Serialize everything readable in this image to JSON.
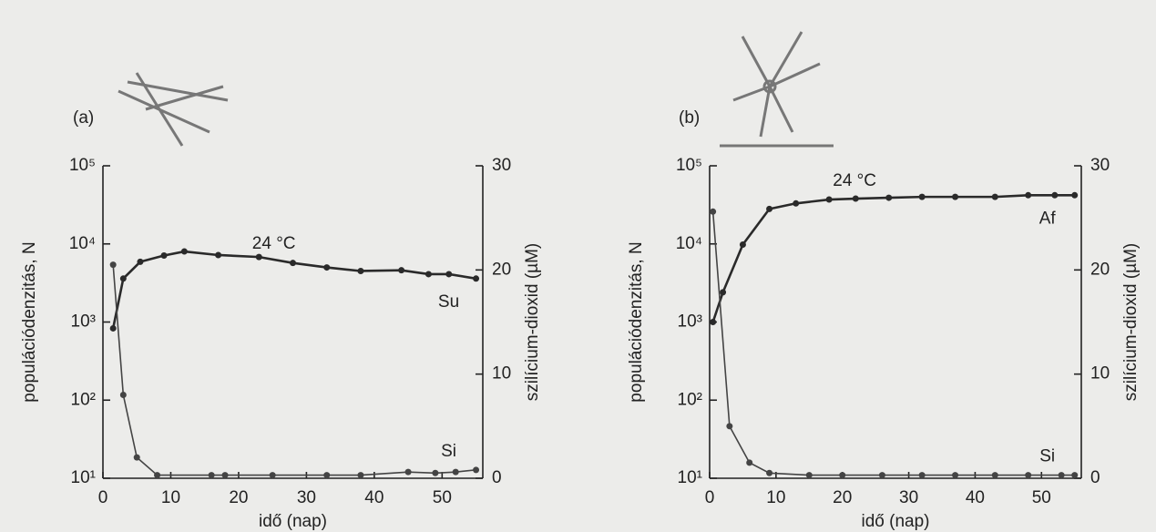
{
  "chart_data": [
    {
      "type": "line",
      "panel_label": "(a)",
      "annotation": "24 °C",
      "xlabel": "idő (nap)",
      "ylabel": "populációdenzitás, N",
      "y2label": "szilícium-dioxid (µM)",
      "ylog": true,
      "xlim": [
        0,
        56
      ],
      "xticks": [
        0,
        10,
        20,
        30,
        40,
        50
      ],
      "ylim": [
        10,
        100000
      ],
      "yticks": [
        {
          "value": 10,
          "label": "10¹"
        },
        {
          "value": 100,
          "label": "10²"
        },
        {
          "value": 1000,
          "label": "10³"
        },
        {
          "value": 10000,
          "label": "10⁴"
        },
        {
          "value": 100000,
          "label": "10⁵"
        }
      ],
      "y2lim": [
        0,
        30
      ],
      "y2ticks": [
        0,
        10,
        20,
        30
      ],
      "series": [
        {
          "name": "Su",
          "color": "#2a2a2a",
          "axis": "y",
          "x": [
            1.5,
            3,
            5.5,
            9,
            12,
            17,
            23,
            28,
            33,
            38,
            44,
            48,
            51,
            55
          ],
          "values": [
            830,
            3600,
            5900,
            7100,
            8000,
            7200,
            6800,
            5700,
            5000,
            4500,
            4600,
            4100,
            4100,
            3600
          ]
        },
        {
          "name": "Si",
          "color": "#444444",
          "axis": "y2",
          "x": [
            1.5,
            3,
            5,
            8,
            16,
            18,
            25,
            33,
            38,
            45,
            49,
            52,
            55
          ],
          "values": [
            20.5,
            8,
            2,
            0.3,
            0.3,
            0.3,
            0.3,
            0.3,
            0.3,
            0.6,
            0.5,
            0.6,
            0.8
          ]
        }
      ]
    },
    {
      "type": "line",
      "panel_label": "(b)",
      "annotation": "24 °C",
      "xlabel": "idő (nap)",
      "ylabel": "populációdenzitás, N",
      "y2label": "szilícium-dioxid (µM)",
      "ylog": true,
      "xlim": [
        0,
        56
      ],
      "xticks": [
        0,
        10,
        20,
        30,
        40,
        50
      ],
      "ylim": [
        10,
        100000
      ],
      "yticks": [
        {
          "value": 10,
          "label": "10¹"
        },
        {
          "value": 100,
          "label": "10²"
        },
        {
          "value": 1000,
          "label": "10³"
        },
        {
          "value": 10000,
          "label": "10⁴"
        },
        {
          "value": 100000,
          "label": "10⁵"
        }
      ],
      "y2lim": [
        0,
        30
      ],
      "y2ticks": [
        0,
        10,
        20,
        30
      ],
      "series": [
        {
          "name": "Af",
          "color": "#2a2a2a",
          "axis": "y",
          "x": [
            0.5,
            2,
            5,
            9,
            13,
            18,
            22,
            27,
            32,
            37,
            43,
            48,
            52,
            55
          ],
          "values": [
            1000,
            2400,
            9800,
            28000,
            33000,
            37000,
            38000,
            39000,
            40000,
            40000,
            40000,
            42000,
            42000,
            42000
          ]
        },
        {
          "name": "Si",
          "color": "#444444",
          "axis": "y2",
          "x": [
            0.5,
            3,
            6,
            9,
            15,
            20,
            26,
            32,
            37,
            43,
            48,
            53,
            55
          ],
          "values": [
            25.6,
            5,
            1.5,
            0.5,
            0.3,
            0.3,
            0.3,
            0.3,
            0.3,
            0.3,
            0.3,
            0.3,
            0.3
          ]
        }
      ]
    }
  ]
}
